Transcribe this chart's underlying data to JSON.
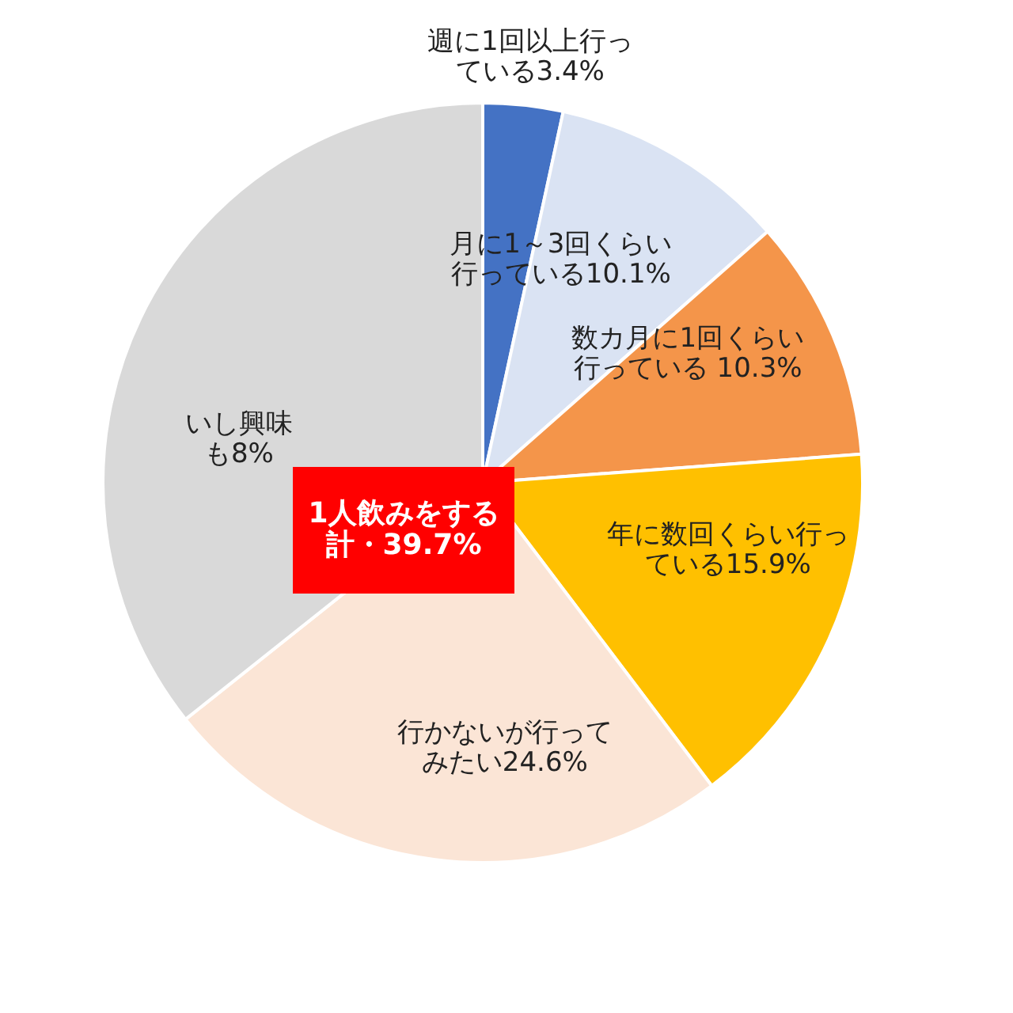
{
  "chart_data": {
    "type": "pie",
    "categories": [
      "週に1回以上行っている3.4%",
      "月に1～3回くらい行っている10.1%",
      "数カ月に1回くらい行っている 10.3%",
      "年に数回くらい行っている15.9%",
      "行かないが行ってみたい24.6%",
      "いし興味も8%"
    ],
    "values": [
      3.4,
      10.1,
      10.3,
      15.9,
      24.6,
      35.7
    ],
    "colors": [
      "#4472c4",
      "#dae3f3",
      "#f4954a",
      "#ffc000",
      "#fbe5d6",
      "#d9d9d9"
    ],
    "annotations": [
      "1人飲みをする計・39.7%"
    ]
  }
}
